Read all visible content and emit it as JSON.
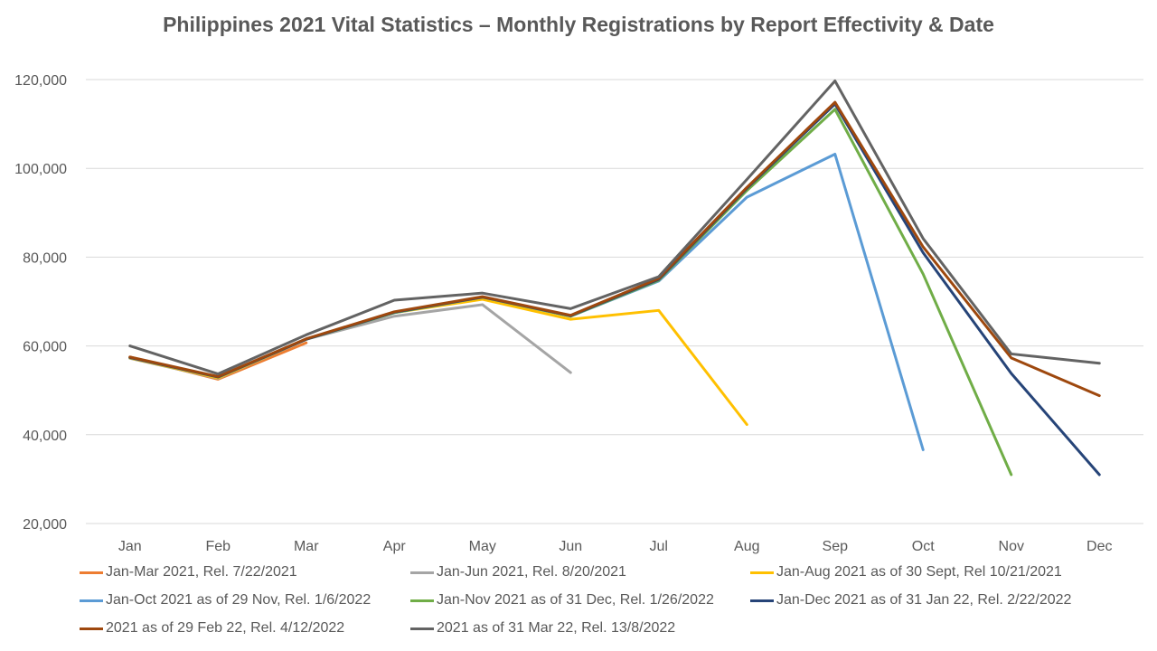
{
  "chart_data": {
    "type": "line",
    "title": "Philippines 2021 Vital Statistics – Monthly Registrations by Report Effectivity & Date",
    "xlabel": "",
    "ylabel": "",
    "ylim": [
      20000,
      120000
    ],
    "y_ticks": [
      20000,
      40000,
      60000,
      80000,
      100000,
      120000
    ],
    "y_tick_labels": [
      "20,000",
      "40,000",
      "60,000",
      "80,000",
      "100,000",
      "120,000"
    ],
    "categories": [
      "Jan",
      "Feb",
      "Mar",
      "Apr",
      "May",
      "Jun",
      "Jul",
      "Aug",
      "Sep",
      "Oct",
      "Nov",
      "Dec"
    ],
    "grid": true,
    "legend_position": "bottom",
    "series": [
      {
        "name": "Jan-Mar 2021, Rel. 7/22/2021",
        "color": "#ED7D31",
        "values": [
          57500,
          52500,
          60700,
          null,
          null,
          null,
          null,
          null,
          null,
          null,
          null,
          null
        ]
      },
      {
        "name": "Jan-Jun 2021, Rel. 8/20/2021",
        "color": "#A5A5A5",
        "values": [
          57200,
          52700,
          61500,
          66700,
          69300,
          54000,
          null,
          null,
          null,
          null,
          null,
          null
        ]
      },
      {
        "name": "Jan-Aug 2021 as of 30 Sept, Rel 10/21/2021",
        "color": "#FFC000",
        "values": [
          57300,
          52800,
          61500,
          67500,
          70500,
          66000,
          68000,
          42300,
          null,
          null,
          null,
          null
        ]
      },
      {
        "name": "Jan-Oct 2021 as of 29 Nov, Rel. 1/6/2022",
        "color": "#5B9BD5",
        "values": [
          57400,
          53000,
          61500,
          67500,
          71000,
          66700,
          74600,
          93500,
          103200,
          36600,
          null,
          null
        ]
      },
      {
        "name": "Jan-Nov 2021 as of 31 Dec, Rel. 1/26/2022",
        "color": "#70AD47",
        "values": [
          57400,
          53000,
          61500,
          67500,
          71000,
          66700,
          74800,
          95000,
          113300,
          76200,
          31000,
          null
        ]
      },
      {
        "name": "Jan-Dec 2021 as of 31 Jan 22, Rel. 2/22/2022",
        "color": "#264478",
        "values": [
          57400,
          53000,
          61500,
          67600,
          71000,
          66800,
          75000,
          95500,
          114500,
          81000,
          53800,
          31000
        ]
      },
      {
        "name": "2021 as of 29 Feb 22, Rel. 4/12/2022",
        "color": "#9E480E",
        "values": [
          57500,
          53100,
          61600,
          67700,
          71100,
          66900,
          75200,
          95700,
          114900,
          82300,
          57300,
          48800
        ]
      },
      {
        "name": "2021 as of 31 Mar 22, Rel. 13/8/2022",
        "color": "#636363",
        "values": [
          60000,
          53700,
          62500,
          70300,
          71900,
          68400,
          75600,
          97500,
          119700,
          84200,
          58200,
          56100
        ]
      }
    ]
  }
}
